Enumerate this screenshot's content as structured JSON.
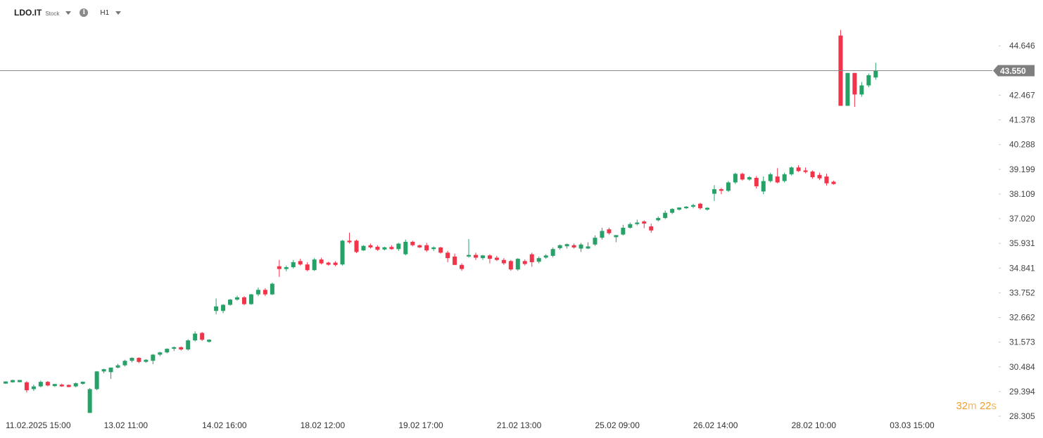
{
  "header": {
    "symbol": "LDO.IT",
    "instrument_type": "Stock",
    "info_icon": "i",
    "timeframe": "H1"
  },
  "countdown": {
    "minutes": "32",
    "minutes_unit": "m",
    "seconds": "22",
    "seconds_unit": "s"
  },
  "colors": {
    "up": "#26a269",
    "down": "#f0344a",
    "price_line": "#888888",
    "price_label_bg": "#7f7f7f"
  },
  "chart_data": {
    "type": "candlestick",
    "current_price": 43.55,
    "current_price_label": "43.550",
    "y_ticks": [
      "44.646",
      "43.550",
      "42.467",
      "41.378",
      "40.288",
      "39.199",
      "38.109",
      "37.020",
      "35.931",
      "34.841",
      "33.752",
      "32.662",
      "31.573",
      "30.484",
      "29.394",
      "28.305"
    ],
    "ylim": [
      28.305,
      45.8
    ],
    "x_labels": [
      {
        "index": 0,
        "date": "11.02.2025",
        "time": "15:00"
      },
      {
        "index": 14,
        "date": "13.02",
        "time": "11:00"
      },
      {
        "index": 28,
        "date": "14.02",
        "time": "16:00"
      },
      {
        "index": 42,
        "date": "18.02",
        "time": "12:00"
      },
      {
        "index": 56,
        "date": "19.02",
        "time": "17:00"
      },
      {
        "index": 70,
        "date": "21.02",
        "time": "13:00"
      },
      {
        "index": 84,
        "date": "25.02",
        "time": "09:00"
      },
      {
        "index": 98,
        "date": "26.02",
        "time": "14:00"
      },
      {
        "index": 112,
        "date": "28.02",
        "time": "10:00"
      },
      {
        "index": 126,
        "date": "03.03",
        "time": "15:00"
      }
    ],
    "candles": [
      [
        29.78,
        29.85,
        29.74,
        29.8
      ],
      [
        29.82,
        29.92,
        29.78,
        29.88
      ],
      [
        29.85,
        29.9,
        29.8,
        29.86
      ],
      [
        29.8,
        29.85,
        29.35,
        29.45
      ],
      [
        29.5,
        29.7,
        29.42,
        29.62
      ],
      [
        29.62,
        29.88,
        29.58,
        29.82
      ],
      [
        29.82,
        29.86,
        29.62,
        29.66
      ],
      [
        29.66,
        29.72,
        29.6,
        29.7
      ],
      [
        29.7,
        29.74,
        29.6,
        29.62
      ],
      [
        29.66,
        29.7,
        29.58,
        29.62
      ],
      [
        29.62,
        29.8,
        29.58,
        29.76
      ],
      [
        29.76,
        29.84,
        29.7,
        29.8
      ],
      [
        28.45,
        29.55,
        28.45,
        29.5
      ],
      [
        29.5,
        30.3,
        29.45,
        30.28
      ],
      [
        30.28,
        30.4,
        30.2,
        30.38
      ],
      [
        30.25,
        30.45,
        29.95,
        30.45
      ],
      [
        30.45,
        30.62,
        30.42,
        30.55
      ],
      [
        30.55,
        30.8,
        30.5,
        30.75
      ],
      [
        30.75,
        30.9,
        30.68,
        30.88
      ],
      [
        30.88,
        30.9,
        30.65,
        30.7
      ],
      [
        30.72,
        30.82,
        30.66,
        30.78
      ],
      [
        30.75,
        31.05,
        30.6,
        31.02
      ],
      [
        31.02,
        31.15,
        30.95,
        31.12
      ],
      [
        31.12,
        31.3,
        31.08,
        31.28
      ],
      [
        31.28,
        31.38,
        31.18,
        31.35
      ],
      [
        31.35,
        31.38,
        31.2,
        31.25
      ],
      [
        31.25,
        31.7,
        31.2,
        31.65
      ],
      [
        31.65,
        32.05,
        31.6,
        31.95
      ],
      [
        31.98,
        32.02,
        31.62,
        31.68
      ],
      [
        31.62,
        31.7,
        31.55,
        31.65
      ],
      [
        32.95,
        33.5,
        32.8,
        33.15
      ],
      [
        32.95,
        33.25,
        32.85,
        33.22
      ],
      [
        33.22,
        33.48,
        33.18,
        33.45
      ],
      [
        33.45,
        33.62,
        33.4,
        33.55
      ],
      [
        33.55,
        33.6,
        33.2,
        33.25
      ],
      [
        33.25,
        33.7,
        33.22,
        33.68
      ],
      [
        33.68,
        33.98,
        33.6,
        33.88
      ],
      [
        33.88,
        33.95,
        33.6,
        33.68
      ],
      [
        33.68,
        34.2,
        33.65,
        34.15
      ],
      [
        34.92,
        35.2,
        34.45,
        34.8
      ],
      [
        34.8,
        34.95,
        34.7,
        34.88
      ],
      [
        34.88,
        35.2,
        34.82,
        35.1
      ],
      [
        35.15,
        35.25,
        34.95,
        35.0
      ],
      [
        35.0,
        35.1,
        34.7,
        34.75
      ],
      [
        34.75,
        35.28,
        34.72,
        35.22
      ],
      [
        35.22,
        35.3,
        35.0,
        35.05
      ],
      [
        35.05,
        35.12,
        34.95,
        35.02
      ],
      [
        35.08,
        35.15,
        34.92,
        34.98
      ],
      [
        35.0,
        36.08,
        34.95,
        36.05
      ],
      [
        36.05,
        36.4,
        35.92,
        35.98
      ],
      [
        36.05,
        36.1,
        35.5,
        35.55
      ],
      [
        35.62,
        35.85,
        35.6,
        35.82
      ],
      [
        35.82,
        35.92,
        35.7,
        35.78
      ],
      [
        35.78,
        35.85,
        35.6,
        35.65
      ],
      [
        35.7,
        35.78,
        35.62,
        35.72
      ],
      [
        35.75,
        35.85,
        35.65,
        35.7
      ],
      [
        35.68,
        35.95,
        35.6,
        35.92
      ],
      [
        35.45,
        36.1,
        35.4,
        36.0
      ],
      [
        36.0,
        36.05,
        35.8,
        35.85
      ],
      [
        35.82,
        35.88,
        35.72,
        35.78
      ],
      [
        35.85,
        35.95,
        35.55,
        35.62
      ],
      [
        35.68,
        35.8,
        35.6,
        35.75
      ],
      [
        35.75,
        35.78,
        35.48,
        35.52
      ],
      [
        35.52,
        35.6,
        35.1,
        35.28
      ],
      [
        35.35,
        35.48,
        34.98,
        34.98
      ],
      [
        34.98,
        35.05,
        34.72,
        34.8
      ],
      [
        35.35,
        36.12,
        35.3,
        35.42
      ],
      [
        35.42,
        35.52,
        35.2,
        35.3
      ],
      [
        35.28,
        35.42,
        35.2,
        35.4
      ],
      [
        35.4,
        35.45,
        35.05,
        35.25
      ],
      [
        35.3,
        35.38,
        35.15,
        35.2
      ],
      [
        35.2,
        35.28,
        34.98,
        35.05
      ],
      [
        35.15,
        35.2,
        34.72,
        34.78
      ],
      [
        34.78,
        35.28,
        34.72,
        35.25
      ],
      [
        35.15,
        35.22,
        34.95,
        35.02
      ],
      [
        35.45,
        35.52,
        34.9,
        35.1
      ],
      [
        35.12,
        35.35,
        35.05,
        35.28
      ],
      [
        35.32,
        35.45,
        35.25,
        35.38
      ],
      [
        35.38,
        35.75,
        35.32,
        35.68
      ],
      [
        35.72,
        35.88,
        35.65,
        35.85
      ],
      [
        35.82,
        35.92,
        35.7,
        35.88
      ],
      [
        35.85,
        35.92,
        35.7,
        35.75
      ],
      [
        35.7,
        35.95,
        35.55,
        35.88
      ],
      [
        35.72,
        35.98,
        35.68,
        35.78
      ],
      [
        35.88,
        36.28,
        35.82,
        36.18
      ],
      [
        36.18,
        36.62,
        36.1,
        36.48
      ],
      [
        36.55,
        36.62,
        36.32,
        36.38
      ],
      [
        36.22,
        36.28,
        35.98,
        36.28
      ],
      [
        36.32,
        36.75,
        36.28,
        36.62
      ],
      [
        36.62,
        36.85,
        36.58,
        36.78
      ],
      [
        36.78,
        36.98,
        36.72,
        36.85
      ],
      [
        36.88,
        36.95,
        36.6,
        36.82
      ],
      [
        36.68,
        36.8,
        36.4,
        36.5
      ],
      [
        36.95,
        37.12,
        36.9,
        37.05
      ],
      [
        37.05,
        37.38,
        37.0,
        37.28
      ],
      [
        37.28,
        37.48,
        37.22,
        37.45
      ],
      [
        37.45,
        37.52,
        37.38,
        37.48
      ],
      [
        37.48,
        37.58,
        37.45,
        37.55
      ],
      [
        37.55,
        37.68,
        37.48,
        37.62
      ],
      [
        37.68,
        37.72,
        37.42,
        37.48
      ],
      [
        37.42,
        37.52,
        37.38,
        37.5
      ],
      [
        38.12,
        38.5,
        37.8,
        38.32
      ],
      [
        38.32,
        38.38,
        38.1,
        38.25
      ],
      [
        38.25,
        38.68,
        38.2,
        38.62
      ],
      [
        38.62,
        39.05,
        38.55,
        39.0
      ],
      [
        39.0,
        39.05,
        38.7,
        38.75
      ],
      [
        38.75,
        38.9,
        38.7,
        38.85
      ],
      [
        38.82,
        38.9,
        38.35,
        38.45
      ],
      [
        38.22,
        38.88,
        38.1,
        38.68
      ],
      [
        38.68,
        39.05,
        38.62,
        38.98
      ],
      [
        38.88,
        39.25,
        38.58,
        38.62
      ],
      [
        38.68,
        39.05,
        38.62,
        38.98
      ],
      [
        38.98,
        39.32,
        38.92,
        39.28
      ],
      [
        39.28,
        39.38,
        39.08,
        39.12
      ],
      [
        39.15,
        39.28,
        39.02,
        39.08
      ],
      [
        39.1,
        39.15,
        38.78,
        38.85
      ],
      [
        38.95,
        39.05,
        38.72,
        38.8
      ],
      [
        38.88,
        39.0,
        38.48,
        38.58
      ],
      [
        38.65,
        38.7,
        38.52,
        38.55
      ],
      [
        45.1,
        45.35,
        42.0,
        42.0
      ],
      [
        42.0,
        43.45,
        42.0,
        43.45
      ],
      [
        43.45,
        43.45,
        41.95,
        42.5
      ],
      [
        42.5,
        43.05,
        42.4,
        42.9
      ],
      [
        42.9,
        43.42,
        42.82,
        43.35
      ],
      [
        43.25,
        43.9,
        43.15,
        43.55
      ]
    ]
  }
}
